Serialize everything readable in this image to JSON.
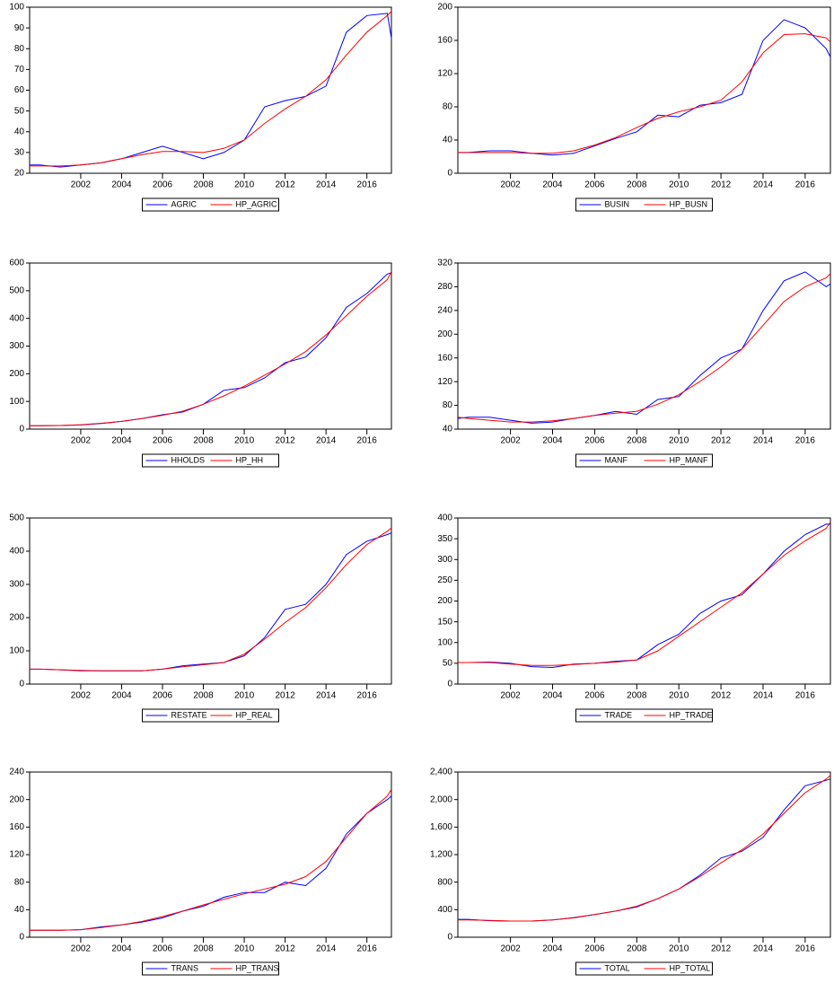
{
  "chart_data": [
    {
      "type": "line",
      "x": [
        1999.5,
        2000,
        2001,
        2002,
        2003,
        2004,
        2005,
        2006,
        2007,
        2008,
        2009,
        2010,
        2011,
        2012,
        2013,
        2014,
        2015,
        2016,
        2017,
        2017.2
      ],
      "xlim": [
        1999.5,
        2017.2
      ],
      "xticks": [
        2002,
        2004,
        2006,
        2008,
        2010,
        2012,
        2014,
        2016
      ],
      "ylim": [
        20,
        100
      ],
      "yticks": [
        20,
        30,
        40,
        50,
        60,
        70,
        80,
        90,
        100
      ],
      "series": [
        {
          "name": "AGRIC",
          "color": "#0000ff",
          "values": [
            24,
            24,
            23,
            24,
            25,
            27,
            30,
            33,
            30,
            27,
            30,
            36,
            52,
            55,
            57,
            62,
            88,
            96,
            97,
            85
          ]
        },
        {
          "name": "HP_AGRIC",
          "color": "#ff0000",
          "values": [
            23.5,
            23.5,
            23.5,
            24,
            25,
            27,
            29,
            30.5,
            30.5,
            30,
            32,
            36,
            44,
            51,
            57,
            65,
            77,
            88,
            96,
            98
          ]
        }
      ]
    },
    {
      "type": "line",
      "x": [
        1999.5,
        2000,
        2001,
        2002,
        2003,
        2004,
        2005,
        2006,
        2007,
        2008,
        2009,
        2010,
        2011,
        2012,
        2013,
        2014,
        2015,
        2016,
        2017,
        2017.2
      ],
      "xlim": [
        1999.5,
        2017.2
      ],
      "xticks": [
        2002,
        2004,
        2006,
        2008,
        2010,
        2012,
        2014,
        2016
      ],
      "ylim": [
        0,
        200
      ],
      "yticks": [
        0,
        40,
        80,
        120,
        160,
        200
      ],
      "series": [
        {
          "name": "BUSIN",
          "color": "#0000ff",
          "values": [
            25,
            25,
            27,
            27,
            24,
            22,
            24,
            33,
            42,
            50,
            70,
            68,
            82,
            85,
            95,
            160,
            185,
            175,
            150,
            140
          ]
        },
        {
          "name": "HP_BUSN",
          "color": "#ff0000",
          "values": [
            25,
            25,
            25,
            25,
            24,
            24,
            27,
            34,
            43,
            55,
            66,
            74,
            80,
            88,
            110,
            145,
            167,
            168,
            163,
            158
          ]
        }
      ]
    },
    {
      "type": "line",
      "x": [
        1999.5,
        2000,
        2001,
        2002,
        2003,
        2004,
        2005,
        2006,
        2007,
        2008,
        2009,
        2010,
        2011,
        2012,
        2013,
        2014,
        2015,
        2016,
        2017,
        2017.2
      ],
      "xlim": [
        1999.5,
        2017.2
      ],
      "xticks": [
        2002,
        2004,
        2006,
        2008,
        2010,
        2012,
        2014,
        2016
      ],
      "ylim": [
        0,
        600
      ],
      "yticks": [
        0,
        100,
        200,
        300,
        400,
        500,
        600
      ],
      "series": [
        {
          "name": "HHOLDS",
          "color": "#0000ff",
          "values": [
            12,
            12,
            13,
            15,
            20,
            28,
            38,
            52,
            62,
            90,
            140,
            150,
            185,
            240,
            260,
            330,
            440,
            490,
            560,
            565
          ]
        },
        {
          "name": "HP_HH",
          "color": "#ff0000",
          "values": [
            12,
            12,
            13,
            16,
            21,
            28,
            38,
            50,
            65,
            90,
            120,
            155,
            195,
            235,
            280,
            340,
            410,
            480,
            540,
            570
          ]
        }
      ]
    },
    {
      "type": "line",
      "x": [
        1999.5,
        2000,
        2001,
        2002,
        2003,
        2004,
        2005,
        2006,
        2007,
        2008,
        2009,
        2010,
        2011,
        2012,
        2013,
        2014,
        2015,
        2016,
        2017,
        2017.2
      ],
      "xlim": [
        1999.5,
        2017.2
      ],
      "xticks": [
        2002,
        2004,
        2006,
        2008,
        2010,
        2012,
        2014,
        2016
      ],
      "ylim": [
        40,
        320
      ],
      "yticks": [
        40,
        80,
        120,
        160,
        200,
        240,
        280,
        320
      ],
      "series": [
        {
          "name": "MANF",
          "color": "#0000ff",
          "values": [
            58,
            60,
            60,
            55,
            50,
            52,
            58,
            63,
            70,
            65,
            90,
            95,
            130,
            160,
            175,
            240,
            290,
            305,
            280,
            285
          ]
        },
        {
          "name": "HP_MANF",
          "color": "#ff0000",
          "values": [
            60,
            58,
            55,
            52,
            52,
            54,
            58,
            63,
            67,
            70,
            82,
            98,
            120,
            145,
            175,
            215,
            255,
            280,
            295,
            302
          ]
        }
      ]
    },
    {
      "type": "line",
      "x": [
        1999.5,
        2000,
        2001,
        2002,
        2003,
        2004,
        2005,
        2006,
        2007,
        2008,
        2009,
        2010,
        2011,
        2012,
        2013,
        2014,
        2015,
        2016,
        2017,
        2017.2
      ],
      "xlim": [
        1999.5,
        2017.2
      ],
      "xticks": [
        2002,
        2004,
        2006,
        2008,
        2010,
        2012,
        2014,
        2016
      ],
      "ylim": [
        0,
        500
      ],
      "yticks": [
        0,
        100,
        200,
        300,
        400,
        500
      ],
      "series": [
        {
          "name": "RESTATE",
          "color": "#0000ff",
          "values": [
            45,
            45,
            43,
            40,
            40,
            40,
            40,
            45,
            55,
            60,
            65,
            85,
            140,
            225,
            240,
            300,
            390,
            430,
            450,
            455
          ]
        },
        {
          "name": "HP_REAL",
          "color": "#ff0000",
          "values": [
            45,
            45,
            43,
            41,
            40,
            40,
            40,
            45,
            52,
            58,
            65,
            90,
            135,
            185,
            230,
            290,
            360,
            420,
            460,
            470
          ]
        }
      ]
    },
    {
      "type": "line",
      "x": [
        1999.5,
        2000,
        2001,
        2002,
        2003,
        2004,
        2005,
        2006,
        2007,
        2008,
        2009,
        2010,
        2011,
        2012,
        2013,
        2014,
        2015,
        2016,
        2017,
        2017.2
      ],
      "xlim": [
        1999.5,
        2017.2
      ],
      "xticks": [
        2002,
        2004,
        2006,
        2008,
        2010,
        2012,
        2014,
        2016
      ],
      "ylim": [
        0,
        400
      ],
      "yticks": [
        0,
        50,
        100,
        150,
        200,
        250,
        300,
        350,
        400
      ],
      "series": [
        {
          "name": "TRADE",
          "color": "#0000ff",
          "values": [
            52,
            52,
            53,
            50,
            42,
            40,
            48,
            50,
            55,
            58,
            95,
            120,
            170,
            200,
            215,
            265,
            320,
            360,
            385,
            385
          ]
        },
        {
          "name": "HP_TRADE",
          "color": "#ff0000",
          "values": [
            52,
            52,
            52,
            48,
            45,
            45,
            47,
            50,
            53,
            58,
            80,
            115,
            150,
            185,
            220,
            265,
            310,
            345,
            375,
            390
          ]
        }
      ]
    },
    {
      "type": "line",
      "x": [
        1999.5,
        2000,
        2001,
        2002,
        2003,
        2004,
        2005,
        2006,
        2007,
        2008,
        2009,
        2010,
        2011,
        2012,
        2013,
        2014,
        2015,
        2016,
        2017,
        2017.2
      ],
      "xlim": [
        1999.5,
        2017.2
      ],
      "xticks": [
        2002,
        2004,
        2006,
        2008,
        2010,
        2012,
        2014,
        2016
      ],
      "ylim": [
        0,
        240
      ],
      "yticks": [
        0,
        40,
        80,
        120,
        160,
        200,
        240
      ],
      "series": [
        {
          "name": "TRANS",
          "color": "#0000ff",
          "values": [
            10,
            10,
            10,
            11,
            15,
            18,
            22,
            28,
            38,
            45,
            58,
            65,
            65,
            80,
            75,
            100,
            150,
            180,
            200,
            205
          ]
        },
        {
          "name": "HP_TRANS",
          "color": "#ff0000",
          "values": [
            10,
            10,
            10,
            11,
            14,
            18,
            23,
            30,
            38,
            47,
            55,
            63,
            70,
            77,
            88,
            110,
            145,
            180,
            205,
            215
          ]
        }
      ]
    },
    {
      "type": "line",
      "x": [
        1999.5,
        2000,
        2001,
        2002,
        2003,
        2004,
        2005,
        2006,
        2007,
        2008,
        2009,
        2010,
        2011,
        2012,
        2013,
        2014,
        2015,
        2016,
        2017,
        2017.2
      ],
      "xlim": [
        1999.5,
        2017.2
      ],
      "xticks": [
        2002,
        2004,
        2006,
        2008,
        2010,
        2012,
        2014,
        2016
      ],
      "ylim": [
        0,
        2400
      ],
      "yticks": [
        0,
        {
          "value": 400,
          "label": "400"
        },
        {
          "value": 800,
          "label": "800"
        },
        {
          "value": 1200,
          "label": "1,200"
        },
        {
          "value": 1600,
          "label": "1,600"
        },
        {
          "value": 2000,
          "label": "2,000"
        },
        {
          "value": 2400,
          "label": "2,400"
        }
      ],
      "series": [
        {
          "name": "TOTAL",
          "color": "#0000ff",
          "values": [
            260,
            260,
            240,
            235,
            235,
            250,
            285,
            330,
            380,
            440,
            560,
            700,
            900,
            1150,
            1250,
            1450,
            1850,
            2200,
            2280,
            2300
          ]
        },
        {
          "name": "HP_TOTAL",
          "color": "#ff0000",
          "values": [
            250,
            250,
            245,
            235,
            235,
            250,
            280,
            330,
            380,
            450,
            560,
            700,
            880,
            1080,
            1270,
            1500,
            1800,
            2100,
            2300,
            2350
          ]
        }
      ]
    }
  ]
}
